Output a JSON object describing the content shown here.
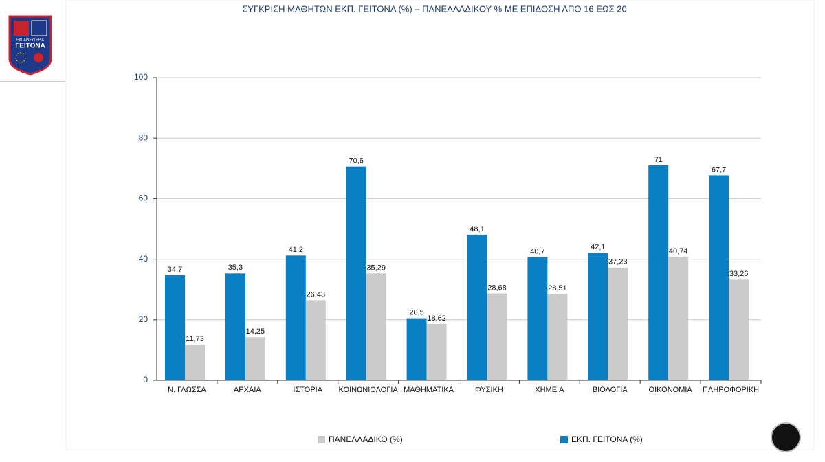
{
  "logo": {
    "caption": "ΕΚΠΑΙΔΕΥΤΗΡΙΑ",
    "name": "ΓΕΙΤΟΝΑ"
  },
  "chart_data": {
    "type": "bar",
    "title": "ΣΥΓΚΡΙΣΗ ΜΑΘΗΤΩΝ ΕΚΠ. ΓΕΙΤΟΝΑ (%) – ΠΑΝΕΛΛΑΔΙΚΟΥ % ΜΕ ΕΠΙΔΟΣΗ ΑΠΟ 16 ΕΩΣ 20",
    "categories": [
      "Ν. ΓΛΩΣΣΑ",
      "ΑΡΧΑΙΑ",
      "ΙΣΤΟΡΙΑ",
      "ΚΟΙΝΩΝΙΟΛΟΓΙΑ",
      "ΜΑΘΗΜΑΤΙΚΑ",
      "ΦΥΣΙΚΗ",
      "ΧΗΜΕΙΑ",
      "ΒΙΟΛΟΓΙΑ",
      "ΟΙΚΟΝΟΜΙΑ",
      "ΠΛΗΡΟΦΟΡΙΚΗ"
    ],
    "series": [
      {
        "name": "ΕΚΠ. ΓΕΙΤΟΝΑ (%)",
        "color": "#0a7fc4",
        "values": [
          34.7,
          35.3,
          41.2,
          70.6,
          20.5,
          48.1,
          40.7,
          42.1,
          71,
          67.7
        ],
        "value_labels": [
          "34,7",
          "35,3",
          "41,2",
          "70,6",
          "20,5",
          "48,1",
          "40,7",
          "42,1",
          "71",
          "67,7"
        ]
      },
      {
        "name": "ΠΑΝΕΛΛΑΔΙΚΟ (%)",
        "color": "#cbcbcb",
        "values": [
          11.73,
          14.25,
          26.43,
          35.29,
          18.62,
          28.68,
          28.51,
          37.23,
          40.74,
          33.26
        ],
        "value_labels": [
          "11,73",
          "14,25",
          "26,43",
          "35,29",
          "18,62",
          "28,68",
          "28,51",
          "37,23",
          "40,74",
          "33,26"
        ]
      }
    ],
    "ylim": [
      0,
      100
    ],
    "yticks": [
      0,
      20,
      40,
      60,
      80,
      100
    ],
    "grid": true,
    "legend": "bottom"
  }
}
